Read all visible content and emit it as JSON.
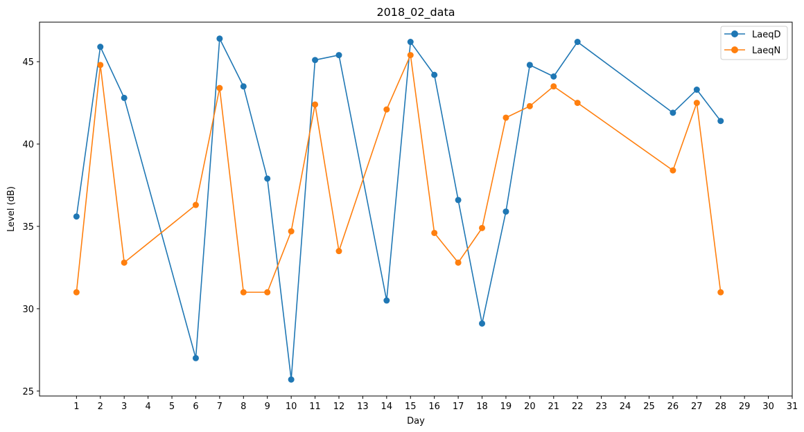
{
  "chart_data": {
    "type": "line",
    "title": "2018_02_data",
    "xlabel": "Day",
    "ylabel": "Level (dB)",
    "xlim": [
      -0.55,
      31
    ],
    "ylim": [
      24.7,
      47.4
    ],
    "x_ticks": [
      1,
      2,
      3,
      4,
      5,
      6,
      7,
      8,
      9,
      10,
      11,
      12,
      13,
      14,
      15,
      16,
      17,
      18,
      19,
      20,
      21,
      22,
      23,
      24,
      25,
      26,
      27,
      28,
      29,
      30,
      31
    ],
    "y_ticks": [
      25,
      30,
      35,
      40,
      45
    ],
    "grid": false,
    "legend_position": "top-right",
    "x": [
      1,
      2,
      3,
      6,
      7,
      8,
      9,
      10,
      11,
      12,
      14,
      15,
      16,
      17,
      18,
      19,
      20,
      21,
      22,
      26,
      27,
      28
    ],
    "series": [
      {
        "name": "LaeqD",
        "color": "#1f77b4",
        "values": [
          35.6,
          45.9,
          42.8,
          27.0,
          46.4,
          43.5,
          37.9,
          25.7,
          45.1,
          45.4,
          30.5,
          46.2,
          44.2,
          36.6,
          29.1,
          35.9,
          44.8,
          44.1,
          46.2,
          41.9,
          43.3,
          41.4
        ]
      },
      {
        "name": "LaeqN",
        "color": "#ff7f0e",
        "values": [
          31.0,
          44.8,
          32.8,
          36.3,
          43.4,
          31.0,
          31.0,
          34.7,
          42.4,
          33.5,
          42.1,
          45.4,
          34.6,
          32.8,
          34.9,
          41.6,
          42.3,
          43.5,
          42.5,
          38.4,
          42.5,
          31.0
        ]
      }
    ]
  }
}
